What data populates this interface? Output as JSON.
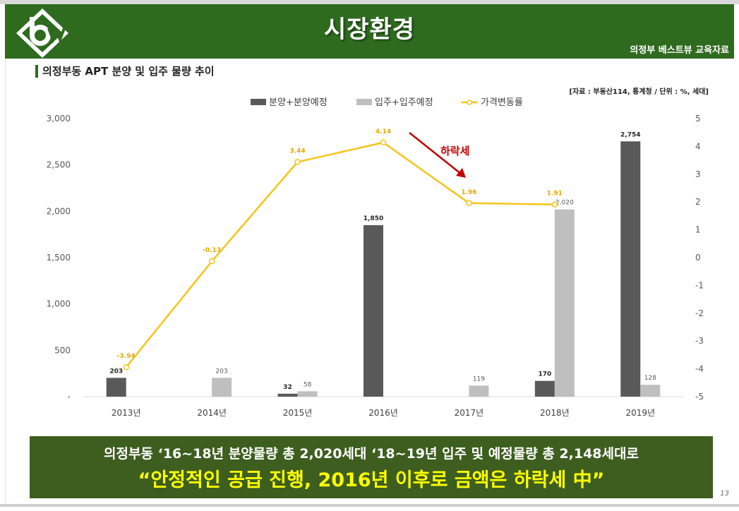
{
  "header": {
    "title": "시장환경",
    "org": "의정부 베스트뷰 교육자료",
    "colors": {
      "header_bg": "#2e6b1f",
      "logo_green": "#2e6b1f"
    }
  },
  "section": {
    "title": "의정부동 APT 분양 및 입주 물량 추이",
    "source": "[자료 : 부동산114, 통계청 / 단위 : %, 세대]"
  },
  "chart_data": {
    "type": "bar",
    "categories": [
      "2013년",
      "2014년",
      "2015년",
      "2016년",
      "2017년",
      "2018년",
      "2019년"
    ],
    "series": [
      {
        "name": "분양+분양예정",
        "type": "bar",
        "axis": "left",
        "color": "#595959",
        "values": [
          203,
          null,
          32,
          1850,
          null,
          170,
          2754
        ],
        "labels": [
          "203",
          "",
          "32",
          "1,850",
          "",
          "170",
          "2,754"
        ]
      },
      {
        "name": "입주+입주예정",
        "type": "bar",
        "axis": "left",
        "color": "#bfbfbf",
        "values": [
          null,
          203,
          58,
          null,
          119,
          2020,
          128
        ],
        "labels": [
          "",
          "203",
          "58",
          "",
          "119",
          "2,020",
          "128"
        ]
      },
      {
        "name": "가격변동률",
        "type": "line",
        "axis": "right",
        "color": "#f5c518",
        "values": [
          -3.94,
          -0.13,
          3.44,
          4.14,
          1.96,
          1.91,
          null
        ],
        "labels": [
          "-3.94",
          "-0.13",
          "3.44",
          "4.14",
          "1.96",
          "1.91",
          ""
        ]
      }
    ],
    "ylim_left": [
      0,
      3000
    ],
    "yticks_left": [
      0,
      500,
      1000,
      1500,
      2000,
      2500,
      3000
    ],
    "yticklabels_left": [
      "-",
      "500",
      "1,000",
      "1,500",
      "2,000",
      "2,500",
      "3,000"
    ],
    "ylim_right": [
      -5,
      5
    ],
    "yticks_right": [
      -5,
      -4,
      -3,
      -2,
      -1,
      0,
      1,
      2,
      3,
      4,
      5
    ],
    "yticklabels_right": [
      "-5",
      "-4",
      "-3",
      "-2",
      "-1",
      "0",
      "1",
      "2",
      "3",
      "4",
      "5"
    ],
    "legend_position": "top",
    "grid": false,
    "annotation": {
      "text": "하락세",
      "color": "#c00000"
    }
  },
  "banner": {
    "line1": "의정부동 ‘16~18년 분양물량 총 2,020세대 ‘18~19년 입주 및 예정물량 총 2,148세대로",
    "line2": "“안정적인 공급 진행, 2016년 이후로 금액은 하락세 中”",
    "colors": {
      "bg": "#3d5e1f",
      "line1": "#ffffff",
      "line2": "#ffff00"
    }
  },
  "page_number": "13"
}
